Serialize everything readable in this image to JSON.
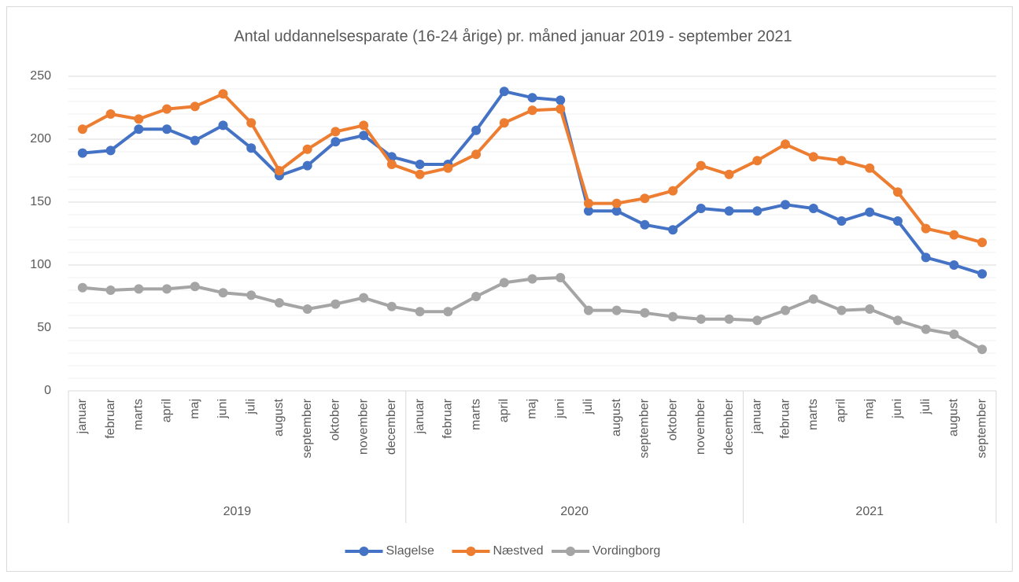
{
  "chart_data": {
    "type": "line",
    "title": "Antal uddannelsesparate (16-24 årige) pr. måned januar 2019 - september 2021",
    "categories": [
      "januar",
      "februar",
      "marts",
      "april",
      "maj",
      "juni",
      "juli",
      "august",
      "september",
      "oktober",
      "november",
      "december",
      "januar",
      "februar",
      "marts",
      "april",
      "maj",
      "juni",
      "juli",
      "august",
      "september",
      "oktober",
      "november",
      "december",
      "januar",
      "februar",
      "marts",
      "april",
      "maj",
      "juni",
      "juli",
      "august",
      "september"
    ],
    "year_groups": [
      {
        "label": "2019",
        "size": 12
      },
      {
        "label": "2020",
        "size": 12
      },
      {
        "label": "2021",
        "size": 9
      }
    ],
    "series": [
      {
        "name": "Slagelse",
        "color": "#4472c4",
        "values": [
          189,
          191,
          208,
          208,
          199,
          211,
          193,
          171,
          179,
          198,
          203,
          186,
          180,
          180,
          207,
          238,
          233,
          231,
          143,
          143,
          132,
          128,
          145,
          143,
          143,
          148,
          145,
          135,
          142,
          135,
          106,
          100,
          93
        ]
      },
      {
        "name": "Næstved",
        "color": "#ed7d31",
        "values": [
          208,
          220,
          216,
          224,
          226,
          236,
          213,
          175,
          192,
          206,
          211,
          180,
          172,
          177,
          188,
          213,
          223,
          224,
          149,
          149,
          153,
          159,
          179,
          172,
          183,
          196,
          186,
          183,
          177,
          158,
          129,
          124,
          118
        ]
      },
      {
        "name": "Vordingborg",
        "color": "#a5a5a5",
        "values": [
          82,
          80,
          81,
          81,
          83,
          78,
          76,
          70,
          65,
          69,
          74,
          67,
          63,
          63,
          75,
          86,
          89,
          90,
          64,
          64,
          62,
          59,
          57,
          57,
          56,
          64,
          73,
          64,
          65,
          56,
          49,
          45,
          33
        ]
      }
    ],
    "ylim": [
      0,
      250
    ],
    "yticks": [
      0,
      50,
      100,
      150,
      200,
      250
    ],
    "minor_yticks": [
      10,
      20,
      30,
      40,
      60,
      70,
      80,
      90,
      110,
      120,
      130,
      140,
      160,
      170,
      180,
      190,
      210,
      220,
      230,
      240
    ],
    "grid": true,
    "legend": "bottom"
  }
}
